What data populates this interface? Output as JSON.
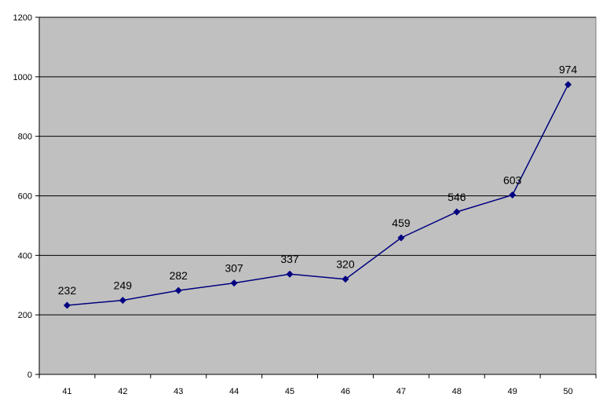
{
  "chart_data": {
    "type": "line",
    "categories": [
      "41",
      "42",
      "43",
      "44",
      "45",
      "46",
      "47",
      "48",
      "49",
      "50"
    ],
    "series": [
      {
        "values": [
          232,
          249,
          282,
          307,
          337,
          320,
          459,
          546,
          603,
          974
        ]
      }
    ],
    "data_labels": [
      "232",
      "249",
      "282",
      "307",
      "337",
      "320",
      "459",
      "546",
      "603",
      "974"
    ],
    "y_ticks": [
      "0",
      "200",
      "400",
      "600",
      "800",
      "1000",
      "1200"
    ],
    "ylim": [
      0,
      1200
    ],
    "grid": "horizontal",
    "legend": "none",
    "marker": "diamond",
    "colors": {
      "plot_background": "#c0c0c0",
      "gridline": "#000000",
      "series": "#000080"
    }
  }
}
